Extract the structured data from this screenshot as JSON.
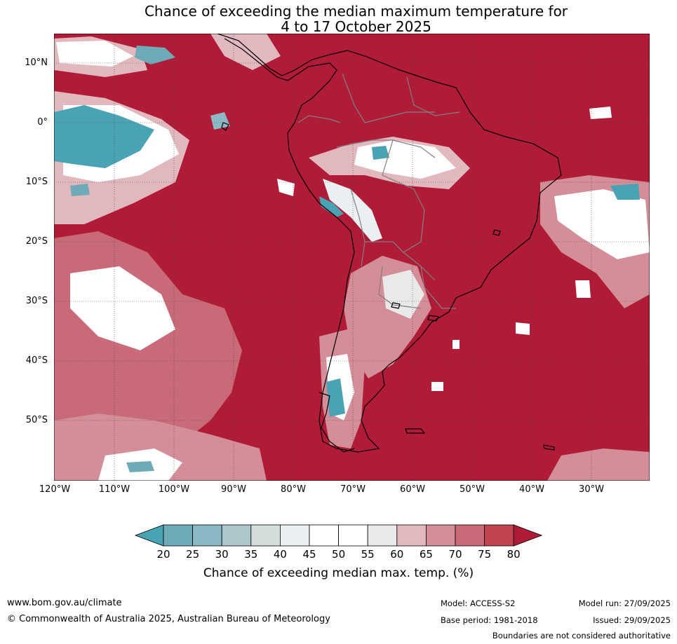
{
  "title_line1": "Chance of exceeding the median maximum temperature for",
  "title_line2": "4 to 17 October 2025",
  "lat_labels": [
    "10°N",
    "0°",
    "10°S",
    "20°S",
    "30°S",
    "40°S",
    "50°S"
  ],
  "lon_labels": [
    "120°W",
    "110°W",
    "100°W",
    "90°W",
    "80°W",
    "70°W",
    "60°W",
    "50°W",
    "40°W",
    "30°W"
  ],
  "colorbar": {
    "ticks": [
      "20",
      "25",
      "30",
      "35",
      "40",
      "45",
      "50",
      "55",
      "60",
      "65",
      "70",
      "75",
      "80"
    ],
    "colors": [
      "#4aa3b5",
      "#6eaab8",
      "#8cb8c6",
      "#adc7cd",
      "#d5dcdc",
      "#eaf0f2",
      "#ffffff",
      "#ffffff",
      "#e9e9e9",
      "#e2b8bf",
      "#d48e98",
      "#c96a78",
      "#c0444f",
      "#b01c38"
    ],
    "label": "Chance of exceeding median max. temp. (%)"
  },
  "map_colors": {
    "dominant": "#b01c38",
    "low": "#4aa3b5",
    "mid": "#ffffff",
    "coast": "#000000",
    "border": "#808080"
  },
  "footer": {
    "website": "www.bom.gov.au/climate",
    "copyright": "© Commonwealth of Australia 2025, Australian Bureau of Meteorology",
    "model": "Model: ACCESS-S2",
    "base_period": "Base period: 1981-2018",
    "model_run": "Model run: 27/09/2025",
    "issued": "Issued: 29/09/2025",
    "disclaimer": "Boundaries are not considered authoritative"
  }
}
